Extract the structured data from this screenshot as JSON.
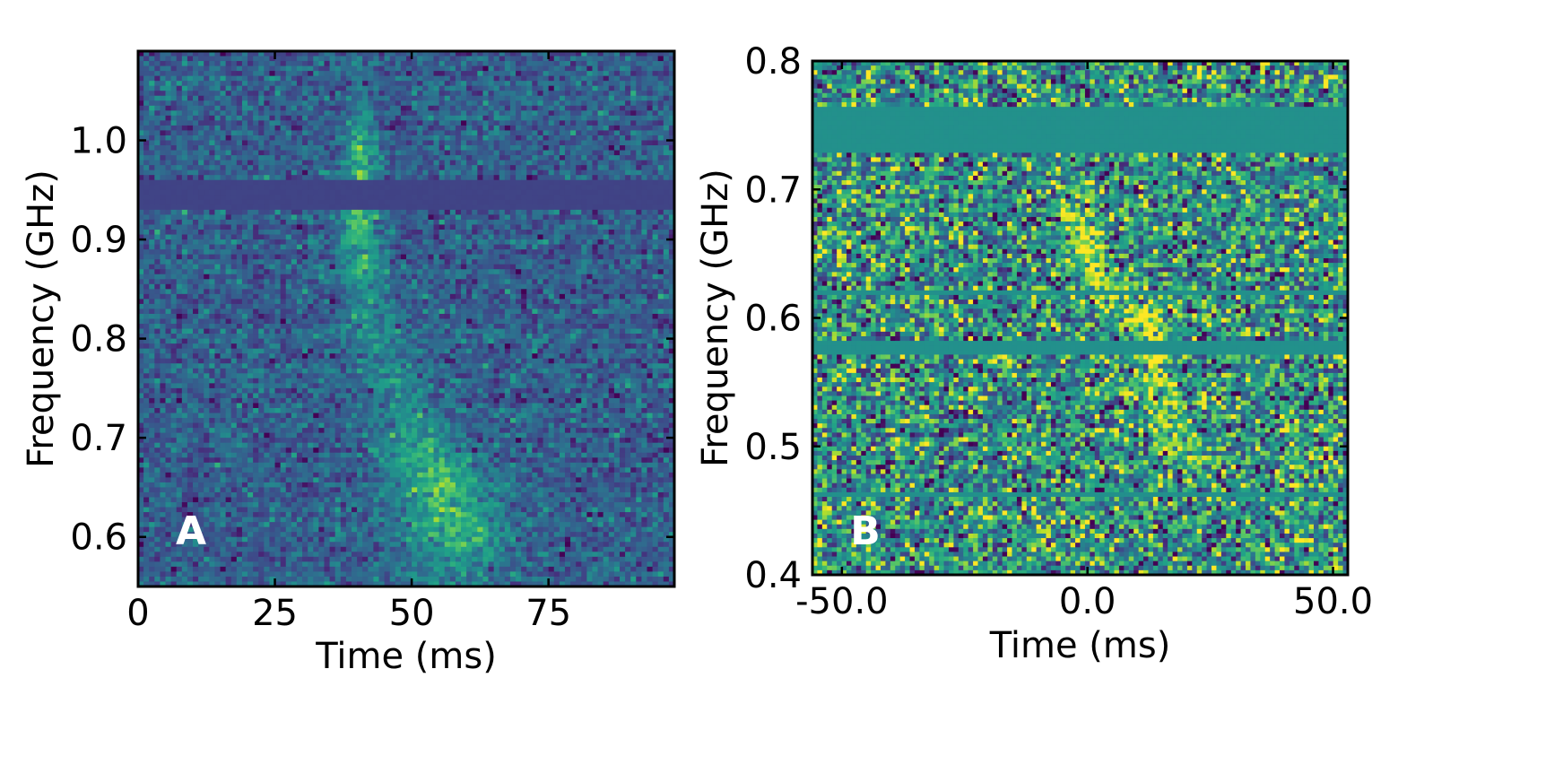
{
  "chart_data": [
    {
      "type": "heatmap",
      "panel_label": "A",
      "xlabel": "Time (ms)",
      "ylabel": "Frequency (GHz)",
      "xlim": [
        0,
        98
      ],
      "ylim": [
        0.55,
        1.09
      ],
      "xticks": [
        0,
        25,
        50,
        75
      ],
      "xtick_labels": [
        "0",
        "25",
        "50",
        "75"
      ],
      "yticks": [
        0.6,
        0.7,
        0.8,
        0.9,
        1.0
      ],
      "ytick_labels": [
        "0.6",
        "0.7",
        "0.8",
        "0.9",
        "1.0"
      ],
      "grid": false,
      "colormap": "viridis",
      "grid_cells": {
        "nx": 98,
        "ny": 108
      },
      "masked_bands": [
        {
          "fmin": 0.932,
          "fmax": 0.958,
          "level": 0.2
        }
      ],
      "signal": {
        "description_values": "dispersed burst sweeping from ~40 ms at 1.02 GHz to ~58 ms at 0.60 GHz",
        "track": [
          [
            1.02,
            40.5
          ],
          [
            0.93,
            40.5
          ],
          [
            0.85,
            41.5
          ],
          [
            0.8,
            43.5
          ],
          [
            0.75,
            47
          ],
          [
            0.7,
            51
          ],
          [
            0.66,
            55
          ],
          [
            0.6,
            58
          ]
        ],
        "width_ms": [
          [
            1.02,
            1.8
          ],
          [
            0.85,
            2.8
          ],
          [
            0.75,
            4.5
          ],
          [
            0.66,
            6.5
          ],
          [
            0.6,
            7.0
          ]
        ],
        "amplitude": [
          [
            1.05,
            0.05
          ],
          [
            1.0,
            0.32
          ],
          [
            0.93,
            0.42
          ],
          [
            0.85,
            0.22
          ],
          [
            0.78,
            0.14
          ],
          [
            0.72,
            0.18
          ],
          [
            0.65,
            0.4
          ],
          [
            0.6,
            0.3
          ],
          [
            0.56,
            0.12
          ]
        ],
        "noise_sigma": 0.1,
        "base_level": 0.3
      }
    },
    {
      "type": "heatmap",
      "panel_label": "B",
      "xlabel": "Time (ms)",
      "ylabel": "Frequency (GHz)",
      "xlim": [
        -56,
        53
      ],
      "ylim": [
        0.4,
        0.8
      ],
      "xticks": [
        -50,
        0,
        50
      ],
      "xtick_labels": [
        "-50.0",
        "0.0",
        "50.0"
      ],
      "yticks": [
        0.4,
        0.5,
        0.6,
        0.7,
        0.8
      ],
      "ytick_labels": [
        "0.4",
        "0.5",
        "0.6",
        "0.7",
        "0.8"
      ],
      "grid": false,
      "colormap": "viridis",
      "grid_cells": {
        "nx": 110,
        "ny": 112
      },
      "masked_bands": [
        {
          "fmin": 0.728,
          "fmax": 0.765,
          "level": 0.5
        },
        {
          "fmin": 0.618,
          "fmax": 0.623,
          "level": 0.5
        },
        {
          "fmin": 0.573,
          "fmax": 0.582,
          "level": 0.5
        },
        {
          "fmin": 0.46,
          "fmax": 0.465,
          "level": 0.5
        }
      ],
      "signal": {
        "track": [
          [
            0.7,
            -1
          ],
          [
            0.64,
            0
          ],
          [
            0.6,
            12
          ],
          [
            0.55,
            14
          ],
          [
            0.5,
            18
          ]
        ],
        "width_ms": [
          [
            0.7,
            2.5
          ],
          [
            0.5,
            3.5
          ]
        ],
        "amplitude": [
          [
            0.72,
            0.0
          ],
          [
            0.68,
            0.25
          ],
          [
            0.64,
            0.45
          ],
          [
            0.62,
            0.2
          ],
          [
            0.6,
            0.45
          ],
          [
            0.55,
            0.35
          ],
          [
            0.5,
            0.3
          ],
          [
            0.47,
            0.0
          ]
        ],
        "noise_sigma": 0.26,
        "base_level": 0.5
      }
    }
  ]
}
